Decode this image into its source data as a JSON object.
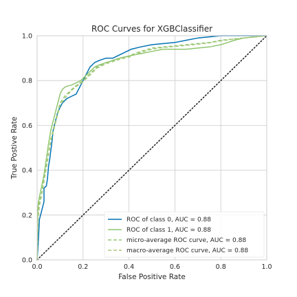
{
  "chart_data": {
    "type": "line",
    "title": "ROC Curves for XGBClassifier",
    "xlabel": "False Positive Rate",
    "ylabel": "True Postive Rate",
    "xlim": [
      0,
      1
    ],
    "ylim": [
      0,
      1
    ],
    "xticks": [
      "0.0",
      "0.2",
      "0.4",
      "0.6",
      "0.8",
      "1.0"
    ],
    "yticks": [
      "0.0",
      "0.2",
      "0.4",
      "0.6",
      "0.8",
      "1.0"
    ],
    "grid": true,
    "legend_position": "lower-right",
    "series": [
      {
        "name": "ROC of class 0, AUC = 0.88",
        "color": "#0072b2",
        "style": "solid",
        "points": [
          [
            0,
            0
          ],
          [
            0.005,
            0.08
          ],
          [
            0.01,
            0.18
          ],
          [
            0.02,
            0.22
          ],
          [
            0.03,
            0.26
          ],
          [
            0.03,
            0.32
          ],
          [
            0.04,
            0.33
          ],
          [
            0.045,
            0.36
          ],
          [
            0.05,
            0.42
          ],
          [
            0.055,
            0.45
          ],
          [
            0.06,
            0.49
          ],
          [
            0.065,
            0.53
          ],
          [
            0.07,
            0.58
          ],
          [
            0.08,
            0.62
          ],
          [
            0.09,
            0.66
          ],
          [
            0.1,
            0.68
          ],
          [
            0.11,
            0.7
          ],
          [
            0.13,
            0.72
          ],
          [
            0.15,
            0.73
          ],
          [
            0.17,
            0.74
          ],
          [
            0.18,
            0.76
          ],
          [
            0.19,
            0.78
          ],
          [
            0.2,
            0.8
          ],
          [
            0.21,
            0.82
          ],
          [
            0.22,
            0.84
          ],
          [
            0.23,
            0.86
          ],
          [
            0.24,
            0.87
          ],
          [
            0.25,
            0.88
          ],
          [
            0.27,
            0.89
          ],
          [
            0.3,
            0.9
          ],
          [
            0.33,
            0.9
          ],
          [
            0.35,
            0.91
          ],
          [
            0.37,
            0.92
          ],
          [
            0.39,
            0.93
          ],
          [
            0.41,
            0.94
          ],
          [
            0.45,
            0.95
          ],
          [
            0.5,
            0.96
          ],
          [
            0.55,
            0.965
          ],
          [
            0.6,
            0.97
          ],
          [
            0.65,
            0.98
          ],
          [
            0.7,
            0.99
          ],
          [
            0.75,
            0.995
          ],
          [
            0.8,
            1.0
          ],
          [
            1.0,
            1.0
          ]
        ]
      },
      {
        "name": "ROC of class 1, AUC = 0.88",
        "color": "#8fc56e",
        "style": "solid",
        "points": [
          [
            0,
            0
          ],
          [
            0.003,
            0.22
          ],
          [
            0.005,
            0.25
          ],
          [
            0.01,
            0.28
          ],
          [
            0.02,
            0.33
          ],
          [
            0.03,
            0.38
          ],
          [
            0.04,
            0.45
          ],
          [
            0.05,
            0.52
          ],
          [
            0.06,
            0.58
          ],
          [
            0.07,
            0.62
          ],
          [
            0.08,
            0.66
          ],
          [
            0.09,
            0.7
          ],
          [
            0.1,
            0.74
          ],
          [
            0.11,
            0.76
          ],
          [
            0.12,
            0.77
          ],
          [
            0.13,
            0.775
          ],
          [
            0.15,
            0.78
          ],
          [
            0.17,
            0.79
          ],
          [
            0.19,
            0.8
          ],
          [
            0.21,
            0.82
          ],
          [
            0.23,
            0.84
          ],
          [
            0.25,
            0.86
          ],
          [
            0.27,
            0.87
          ],
          [
            0.3,
            0.88
          ],
          [
            0.33,
            0.89
          ],
          [
            0.36,
            0.9
          ],
          [
            0.4,
            0.91
          ],
          [
            0.45,
            0.92
          ],
          [
            0.5,
            0.93
          ],
          [
            0.55,
            0.94
          ],
          [
            0.6,
            0.94
          ],
          [
            0.65,
            0.94
          ],
          [
            0.7,
            0.945
          ],
          [
            0.75,
            0.95
          ],
          [
            0.8,
            0.96
          ],
          [
            0.83,
            0.97
          ],
          [
            0.86,
            0.98
          ],
          [
            0.9,
            0.99
          ],
          [
            0.95,
            0.995
          ],
          [
            1.0,
            1.0
          ]
        ]
      },
      {
        "name": "micro-average ROC curve, AUC = 0.88",
        "color": "#8fc56e",
        "style": "dashed",
        "points": [
          [
            0,
            0
          ],
          [
            0.004,
            0.2
          ],
          [
            0.01,
            0.26
          ],
          [
            0.02,
            0.3
          ],
          [
            0.03,
            0.36
          ],
          [
            0.04,
            0.42
          ],
          [
            0.05,
            0.48
          ],
          [
            0.06,
            0.54
          ],
          [
            0.07,
            0.58
          ],
          [
            0.08,
            0.62
          ],
          [
            0.09,
            0.66
          ],
          [
            0.1,
            0.7
          ],
          [
            0.12,
            0.73
          ],
          [
            0.14,
            0.75
          ],
          [
            0.16,
            0.77
          ],
          [
            0.18,
            0.785
          ],
          [
            0.2,
            0.8
          ],
          [
            0.22,
            0.82
          ],
          [
            0.24,
            0.84
          ],
          [
            0.26,
            0.86
          ],
          [
            0.28,
            0.87
          ],
          [
            0.3,
            0.88
          ],
          [
            0.33,
            0.89
          ],
          [
            0.36,
            0.9
          ],
          [
            0.4,
            0.91
          ],
          [
            0.45,
            0.93
          ],
          [
            0.5,
            0.945
          ],
          [
            0.55,
            0.95
          ],
          [
            0.6,
            0.955
          ],
          [
            0.65,
            0.96
          ],
          [
            0.7,
            0.965
          ],
          [
            0.75,
            0.97
          ],
          [
            0.8,
            0.98
          ],
          [
            0.85,
            0.985
          ],
          [
            0.9,
            0.99
          ],
          [
            0.95,
            0.995
          ],
          [
            1.0,
            1.0
          ]
        ]
      },
      {
        "name": "macro-average ROC curve, AUC = 0.88",
        "color": "#a8c97c",
        "style": "dashed",
        "points": [
          [
            0,
            0
          ],
          [
            0.004,
            0.18
          ],
          [
            0.01,
            0.24
          ],
          [
            0.02,
            0.29
          ],
          [
            0.03,
            0.35
          ],
          [
            0.04,
            0.41
          ],
          [
            0.05,
            0.47
          ],
          [
            0.06,
            0.53
          ],
          [
            0.07,
            0.57
          ],
          [
            0.08,
            0.61
          ],
          [
            0.09,
            0.65
          ],
          [
            0.1,
            0.69
          ],
          [
            0.12,
            0.72
          ],
          [
            0.14,
            0.745
          ],
          [
            0.16,
            0.765
          ],
          [
            0.18,
            0.78
          ],
          [
            0.2,
            0.795
          ],
          [
            0.22,
            0.815
          ],
          [
            0.24,
            0.835
          ],
          [
            0.26,
            0.855
          ],
          [
            0.28,
            0.865
          ],
          [
            0.3,
            0.875
          ],
          [
            0.33,
            0.885
          ],
          [
            0.36,
            0.895
          ],
          [
            0.4,
            0.905
          ],
          [
            0.45,
            0.925
          ],
          [
            0.5,
            0.94
          ],
          [
            0.55,
            0.948
          ],
          [
            0.6,
            0.952
          ],
          [
            0.65,
            0.957
          ],
          [
            0.7,
            0.962
          ],
          [
            0.75,
            0.968
          ],
          [
            0.8,
            0.977
          ],
          [
            0.85,
            0.984
          ],
          [
            0.9,
            0.99
          ],
          [
            0.95,
            0.995
          ],
          [
            1.0,
            1.0
          ]
        ]
      }
    ],
    "reference_line": {
      "color": "#262626",
      "style": "dotted",
      "points": [
        [
          0,
          0
        ],
        [
          1,
          1
        ]
      ]
    }
  }
}
